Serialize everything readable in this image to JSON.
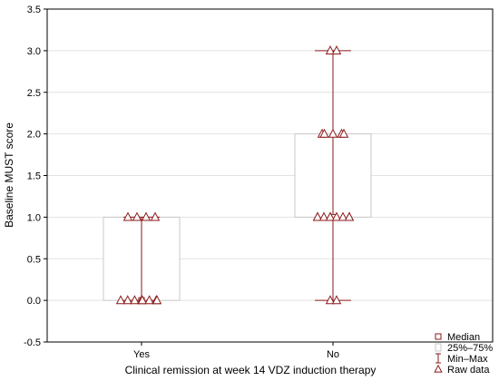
{
  "chart_data": {
    "type": "box",
    "xlabel": "Clinical remission at week 14 VDZ induction therapy",
    "ylabel": "Baseline MUST score",
    "ylim": [
      -0.5,
      3.5
    ],
    "yticks": [
      "-0.5",
      "0.0",
      "0.5",
      "1.0",
      "1.5",
      "2.0",
      "2.5",
      "3.0",
      "3.5"
    ],
    "ytick_values": [
      -0.5,
      0.0,
      0.5,
      1.0,
      1.5,
      2.0,
      2.5,
      3.0,
      3.5
    ],
    "grid": true,
    "legend_position": "bottom-right",
    "categories": [
      "Yes",
      "No"
    ],
    "groups": [
      {
        "category": "Yes",
        "median": 0.0,
        "q1": 0.0,
        "q3": 1.0,
        "min": 0.0,
        "max": 1.0,
        "raw": [
          0,
          0,
          0,
          0,
          0,
          0,
          0,
          0,
          1,
          1,
          1,
          1
        ]
      },
      {
        "category": "No",
        "median": 1.0,
        "q1": 1.0,
        "q3": 2.0,
        "min": 0.0,
        "max": 3.0,
        "raw": [
          0,
          0,
          1,
          1,
          1,
          1,
          1,
          1,
          1,
          1,
          1,
          2,
          2,
          2,
          2,
          2,
          3,
          3
        ]
      }
    ],
    "legend": [
      "Median",
      "25%–75%",
      "Min–Max",
      "Raw data"
    ],
    "colors": {
      "marker": "#8b1a1a",
      "box": "#c8c8c8",
      "grid": "#e2e2e2",
      "axis": "#000000"
    }
  }
}
